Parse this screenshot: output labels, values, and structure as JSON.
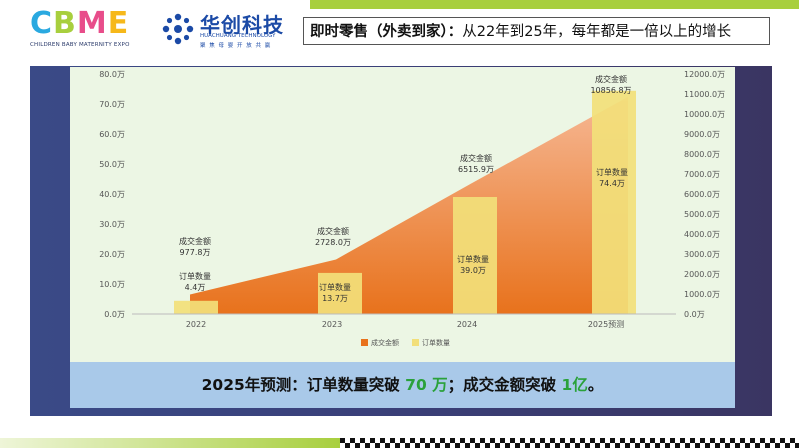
{
  "header": {
    "cbme_logo": {
      "letters": [
        {
          "ch": "C",
          "color": "#2aa9e0"
        },
        {
          "ch": "B",
          "color": "#a8cf3e"
        },
        {
          "ch": "M",
          "color": "#e84d8a"
        },
        {
          "ch": "E",
          "color": "#f6b81a"
        }
      ],
      "subtitle": "CHILDREN BABY MATERNITY EXPO"
    },
    "huachuang_logo": {
      "name": "华创科技",
      "english": "HUACHUANG TECHNOLOGY",
      "slogan": "聚 焦 母 婴 开 放 共 赢"
    },
    "headline_bold": "即时零售（外卖到家）：",
    "headline_rest": "从22年到25年，每年都是一倍以上的增长"
  },
  "banner": {
    "part1": "2025年预测：订单数量突破 ",
    "highlight1": "70 万",
    "part2": "；成交金额突破 ",
    "highlight2": "1亿",
    "part3": "。"
  },
  "colors": {
    "area_top": "#f6b895",
    "area_bottom": "#e8721c",
    "bar_color": "#f2df7a",
    "panel_bg": "#ecf6e4",
    "highlight_green": "#2aa13a"
  },
  "chart_data": {
    "type": "bar",
    "categories": [
      "2022",
      "2023",
      "2024",
      "2025预测"
    ],
    "series": [
      {
        "name": "成交金额",
        "type": "area",
        "axis": "right",
        "values": [
          977.8,
          2728.0,
          6515.9,
          10856.8
        ],
        "label_title": "成交金额",
        "labels": [
          "977.8万",
          "2728.0万",
          "6515.9万",
          "10856.8万"
        ]
      },
      {
        "name": "订单数量",
        "type": "bar",
        "axis": "left",
        "values": [
          4.4,
          13.7,
          39.0,
          74.4
        ],
        "label_title": "订单数量",
        "labels": [
          "4.4万",
          "13.7万",
          "39.0万",
          "74.4万"
        ]
      }
    ],
    "left_axis": {
      "ylim": [
        0,
        80
      ],
      "ticks": [
        "0.0万",
        "10.0万",
        "20.0万",
        "30.0万",
        "40.0万",
        "50.0万",
        "60.0万",
        "70.0万",
        "80.0万"
      ]
    },
    "right_axis": {
      "ylim": [
        0,
        12000
      ],
      "ticks": [
        "0.0万",
        "1000.0万",
        "2000.0万",
        "3000.0万",
        "4000.0万",
        "5000.0万",
        "6000.0万",
        "7000.0万",
        "8000.0万",
        "9000.0万",
        "10000.0万",
        "11000.0万",
        "12000.0万"
      ]
    },
    "legend": [
      "成交金额",
      "订单数量"
    ],
    "legend_position": "bottom",
    "grid": false
  }
}
